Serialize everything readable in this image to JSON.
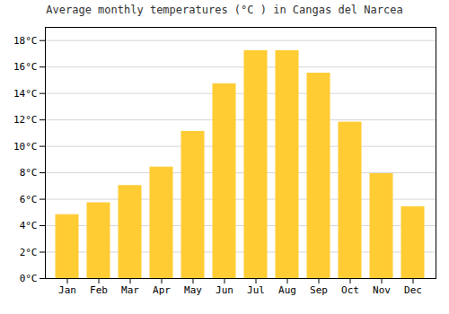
{
  "chart_data": {
    "type": "bar",
    "title": "Average monthly temperatures (°C ) in Cangas del Narcea",
    "categories": [
      "Jan",
      "Feb",
      "Mar",
      "Apr",
      "May",
      "Jun",
      "Jul",
      "Aug",
      "Sep",
      "Oct",
      "Nov",
      "Dec"
    ],
    "values": [
      4.8,
      5.7,
      7.0,
      8.4,
      11.1,
      14.7,
      17.2,
      17.2,
      15.5,
      11.8,
      7.9,
      5.4
    ],
    "color": "#FFCC33",
    "ylim": [
      0,
      19
    ],
    "yticks": [
      {
        "value": 0,
        "label": "0°C"
      },
      {
        "value": 2,
        "label": "2°C"
      },
      {
        "value": 4,
        "label": "4°C"
      },
      {
        "value": 6,
        "label": "6°C"
      },
      {
        "value": 8,
        "label": "8°C"
      },
      {
        "value": 10,
        "label": "10°C"
      },
      {
        "value": 12,
        "label": "12°C"
      },
      {
        "value": 14,
        "label": "14°C"
      },
      {
        "value": 16,
        "label": "16°C"
      },
      {
        "value": 18,
        "label": "18°C"
      }
    ],
    "grid": true
  }
}
